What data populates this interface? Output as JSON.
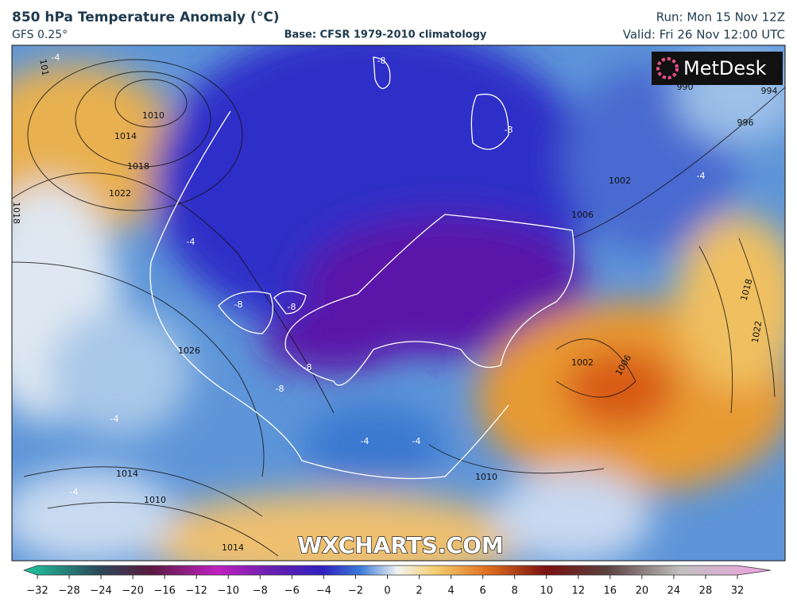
{
  "header": {
    "title": "850 hPa Temperature Anomaly (°C)",
    "model": "GFS 0.25°",
    "base": "Base: CFSR 1979-2010 climatology",
    "run": "Run: Mon 15 Nov 12Z",
    "valid": "Valid: Fri 26 Nov 12:00 UTC"
  },
  "logo": "MetDesk",
  "watermark": "WXCHARTS.COM",
  "isobar_labels": [
    1010,
    1014,
    1018,
    1022,
    1018,
    1026,
    1014,
    1010,
    1014,
    1010,
    1002,
    1006,
    1018,
    1022,
    1002,
    1006,
    996,
    994,
    990,
    101
  ],
  "anomaly_labels": [
    -8,
    -8,
    -4,
    -4,
    -8,
    -8,
    -8,
    -4,
    -4,
    -4,
    -4,
    -4,
    -8
  ],
  "colorbar": {
    "ticks": [
      {
        "value": -32,
        "label": "−32"
      },
      {
        "value": -28,
        "label": "−28"
      },
      {
        "value": -24,
        "label": "−24"
      },
      {
        "value": -20,
        "label": "−20"
      },
      {
        "value": -16,
        "label": "−16"
      },
      {
        "value": -12,
        "label": "−12"
      },
      {
        "value": -10,
        "label": "−10"
      },
      {
        "value": -8,
        "label": "−8"
      },
      {
        "value": -6,
        "label": "−6"
      },
      {
        "value": -4,
        "label": "−4"
      },
      {
        "value": -2,
        "label": "−2"
      },
      0,
      2,
      4,
      6,
      8,
      10,
      12,
      16,
      20,
      24,
      28,
      32
    ]
  }
}
